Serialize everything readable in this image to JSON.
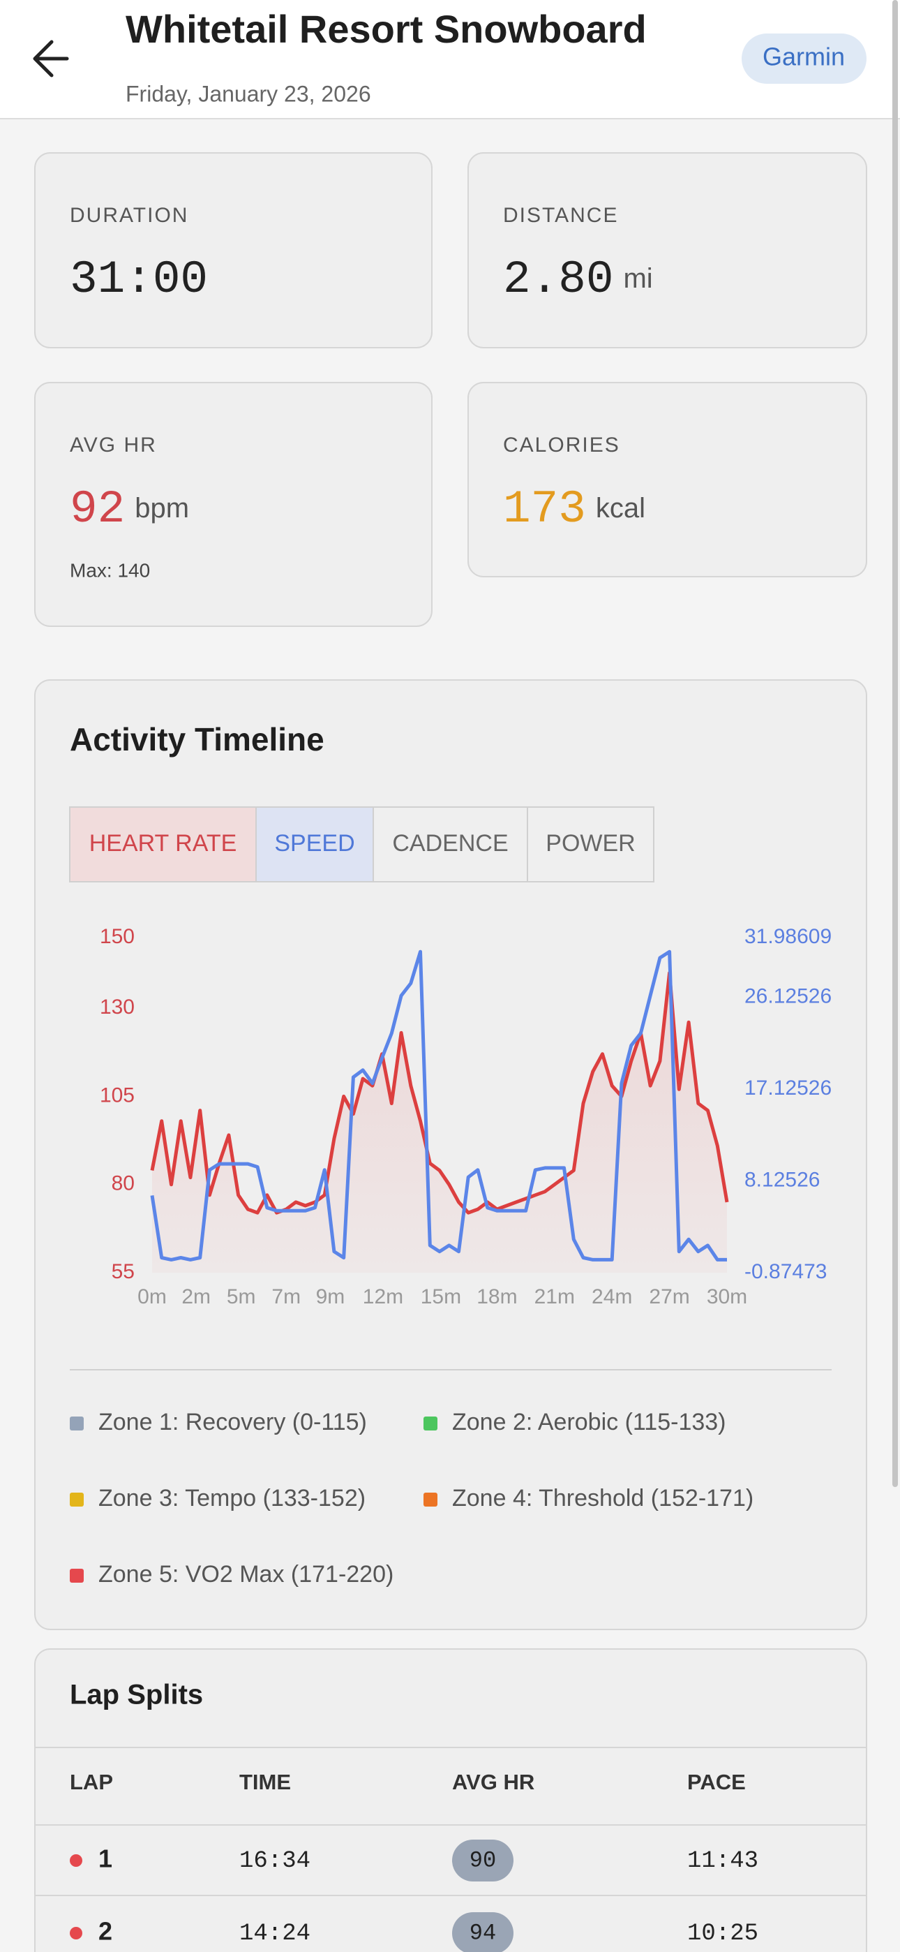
{
  "header": {
    "title": "Whitetail Resort Snowboard",
    "date": "Friday, January 23, 2026",
    "source": "Garmin"
  },
  "stats": [
    {
      "label": "DURATION",
      "value": "31:00"
    },
    {
      "label": "DISTANCE",
      "value": "2.80",
      "unit": "mi"
    },
    {
      "label": "AVG HR",
      "value": 92,
      "unit": "bpm",
      "sub": "Max: 140"
    },
    {
      "label": "CALORIES",
      "value": 173,
      "unit": "kcal"
    }
  ],
  "timeline": {
    "title": "Activity Timeline",
    "tabs": [
      "HEART RATE",
      "SPEED",
      "CADENCE",
      "POWER"
    ]
  },
  "chart_data": {
    "type": "line",
    "x": [
      0,
      0.5,
      1,
      1.5,
      2,
      2.5,
      3,
      3.5,
      4,
      4.5,
      5,
      5.5,
      6,
      6.5,
      7,
      7.5,
      8,
      8.5,
      9,
      9.5,
      10,
      10.5,
      11,
      11.5,
      12,
      12.5,
      13,
      13.5,
      14,
      14.5,
      15,
      15.5,
      16,
      16.5,
      17,
      17.5,
      18,
      18.5,
      19,
      19.5,
      20,
      20.5,
      21,
      21.5,
      22,
      22.5,
      23,
      23.5,
      24,
      24.5,
      25,
      25.5,
      26,
      26.5,
      27,
      27.5,
      28,
      28.5,
      29,
      29.5,
      30
    ],
    "xlim": [
      0,
      30
    ],
    "xticks": [
      {
        "value": 0,
        "label": "0m"
      },
      {
        "value": 2.3,
        "label": "2m"
      },
      {
        "value": 4.65,
        "label": "5m"
      },
      {
        "value": 7,
        "label": "7m"
      },
      {
        "value": 9.3,
        "label": "9m"
      },
      {
        "value": 12.05,
        "label": "12m"
      },
      {
        "value": 15.07,
        "label": "15m"
      },
      {
        "value": 18,
        "label": "18m"
      },
      {
        "value": 21,
        "label": "21m"
      },
      {
        "value": 24,
        "label": "24m"
      },
      {
        "value": 27,
        "label": "27m"
      },
      {
        "value": 30,
        "label": "30m"
      }
    ],
    "ylim": [
      55,
      150
    ],
    "yticks": [
      55,
      80,
      105,
      130,
      150
    ],
    "y2lim": [
      -0.87473,
      31.98609
    ],
    "y2ticks": [
      -0.87473,
      8.12526,
      17.12526,
      26.12526,
      31.98609
    ],
    "series": [
      {
        "color": "#dc3f3f",
        "values": [
          84,
          98,
          80,
          98,
          82,
          101,
          77,
          86,
          94,
          77,
          73,
          72,
          77,
          72,
          73,
          75,
          74,
          75,
          77,
          93,
          105,
          100,
          110,
          108,
          117,
          103,
          123,
          108,
          98,
          86,
          84,
          80,
          75,
          72,
          73,
          75,
          73,
          74,
          75,
          76,
          77,
          78,
          80,
          82,
          84,
          103,
          112,
          117,
          108,
          105,
          115,
          123,
          108,
          115,
          140,
          107,
          126,
          103,
          101,
          91,
          75
        ]
      },
      {
        "color": "#5b85e8",
        "axis": "y2",
        "values": [
          6.7,
          0.6,
          0.4,
          0.6,
          0.4,
          0.6,
          9.2,
          9.8,
          9.8,
          9.8,
          9.8,
          9.5,
          5.5,
          5.2,
          5.2,
          5.2,
          5.2,
          5.5,
          9.2,
          1.2,
          0.6,
          18.3,
          19,
          17.7,
          20.2,
          22.6,
          26.3,
          27.5,
          30.6,
          1.8,
          1.2,
          1.8,
          1.2,
          8.5,
          9.2,
          5.5,
          5.2,
          5.2,
          5.2,
          5.2,
          9.2,
          9.4,
          9.4,
          9.4,
          2.4,
          0.6,
          0.4,
          0.4,
          0.4,
          17.7,
          21.4,
          22.6,
          26.3,
          30,
          30.6,
          1.2,
          2.4,
          1.2,
          1.8,
          0.4,
          0.4
        ]
      }
    ]
  },
  "zones": [
    {
      "label": "Zone 1: Recovery (0-115)",
      "color": "#94a3b8"
    },
    {
      "label": "Zone 2: Aerobic (115-133)",
      "color": "#4cc65e"
    },
    {
      "label": "Zone 3: Tempo (133-152)",
      "color": "#e3b51a"
    },
    {
      "label": "Zone 4: Threshold (152-171)",
      "color": "#ec7424"
    },
    {
      "label": "Zone 5: VO2 Max (171-220)",
      "color": "#e5484d"
    }
  ],
  "laps": {
    "title": "Lap Splits",
    "columns": [
      "LAP",
      "TIME",
      "AVG HR",
      "PACE"
    ],
    "rows": [
      [
        "1",
        "16:34",
        "90",
        "11:43"
      ],
      [
        "2",
        "14:24",
        "94",
        "10:25"
      ]
    ]
  }
}
